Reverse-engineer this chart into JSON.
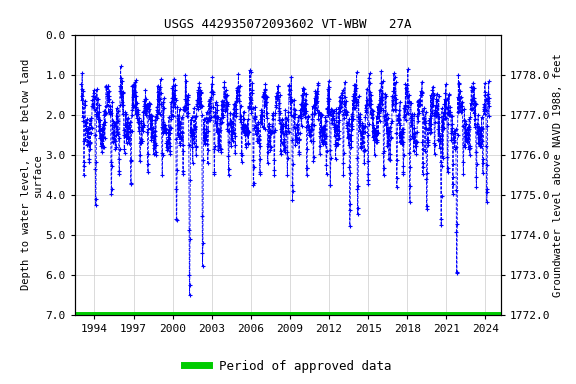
{
  "title": "USGS 442935072093602 VT-WBW   27A",
  "ylabel_left": "Depth to water level, feet below land\nsurface",
  "ylabel_right": "Groundwater level above NAVD 1988, feet",
  "ylim_left": [
    7.0,
    0.0
  ],
  "ylim_right": [
    1772.0,
    1779.0
  ],
  "xlim": [
    1992.5,
    2025.2
  ],
  "yticks_left": [
    0.0,
    1.0,
    2.0,
    3.0,
    4.0,
    5.0,
    6.0,
    7.0
  ],
  "yticks_right": [
    1772.0,
    1773.0,
    1774.0,
    1775.0,
    1776.0,
    1777.0,
    1778.0
  ],
  "xticks": [
    1994,
    1997,
    2000,
    2003,
    2006,
    2009,
    2012,
    2015,
    2018,
    2021,
    2024
  ],
  "data_color": "#0000ff",
  "line_style": "--",
  "marker": "+",
  "marker_size": 3.5,
  "line_width": 0.6,
  "green_bar_color": "#00cc00",
  "legend_label": "Period of approved data",
  "background_color": "#ffffff",
  "title_fontsize": 9,
  "axis_fontsize": 7.5,
  "tick_fontsize": 8,
  "font_family": "monospace",
  "grid_color": "#cccccc",
  "grid_lw": 0.5
}
